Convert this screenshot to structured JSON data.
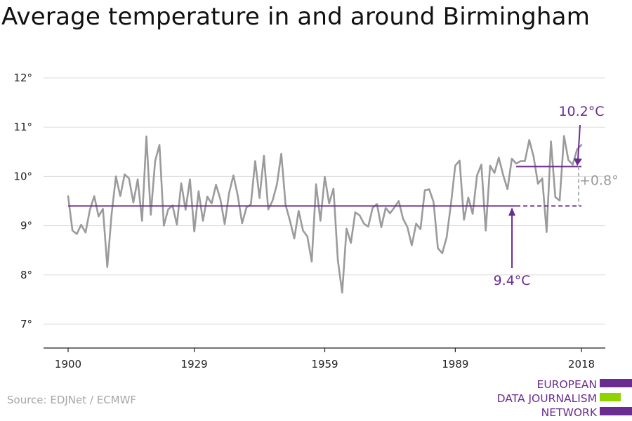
{
  "title": "Average temperature in and around Birmingham",
  "source": "Source: EDJNet / ECMWF",
  "logo": {
    "lines": [
      "EUROPEAN",
      "DATA JOURNALISM",
      "NETWORK"
    ]
  },
  "colors": {
    "series": "#9b9b9b",
    "accent": "#6a2c91",
    "grid": "#dcdcdc",
    "logo_green": "#8fd400"
  },
  "chart_data": {
    "type": "line",
    "title": "Average temperature in and around Birmingham",
    "xlabel": "",
    "ylabel": "",
    "xlim": [
      1900,
      2018
    ],
    "ylim": [
      6.5,
      12.2
    ],
    "x_ticks": [
      1900,
      1929,
      1959,
      1989,
      2018
    ],
    "x_tick_labels": [
      "1900",
      "1929",
      "1959",
      "1989",
      "2018"
    ],
    "y_ticks": [
      7,
      8,
      9,
      10,
      11,
      12
    ],
    "y_tick_labels": [
      "7°",
      "8°",
      "9°",
      "10°",
      "11°",
      "12°"
    ],
    "grid": true,
    "series": [
      {
        "x_start": 1900,
        "values": [
          9.6,
          8.9,
          8.83,
          9.02,
          8.86,
          9.32,
          9.6,
          9.19,
          9.34,
          8.16,
          9.23,
          10.0,
          9.6,
          10.04,
          9.96,
          9.47,
          9.94,
          9.1,
          10.81,
          9.22,
          10.31,
          10.64,
          9.0,
          9.33,
          9.41,
          9.02,
          9.86,
          9.32,
          9.94,
          8.88,
          9.7,
          9.1,
          9.59,
          9.45,
          9.83,
          9.54,
          9.03,
          9.66,
          10.02,
          9.61,
          9.05,
          9.37,
          9.43,
          10.31,
          9.56,
          10.42,
          9.33,
          9.51,
          9.84,
          10.46,
          9.42,
          9.1,
          8.74,
          9.3,
          8.9,
          8.78,
          8.27,
          9.84,
          9.1,
          9.99,
          9.45,
          9.75,
          8.3,
          7.64,
          8.94,
          8.65,
          9.27,
          9.21,
          9.04,
          8.98,
          9.36,
          9.44,
          8.97,
          9.36,
          9.25,
          9.37,
          9.5,
          9.14,
          8.97,
          8.6,
          9.04,
          8.93,
          9.72,
          9.74,
          9.48,
          8.54,
          8.44,
          8.76,
          9.44,
          10.22,
          10.32,
          9.12,
          9.57,
          9.24,
          10.02,
          10.24,
          8.9,
          10.22,
          10.07,
          10.38,
          10.03,
          9.74,
          10.36,
          10.26,
          10.31,
          10.31,
          10.74,
          10.4,
          9.85,
          9.96,
          8.87,
          10.71,
          9.58,
          9.51,
          10.82,
          10.33,
          10.24,
          10.55,
          10.64
        ]
      }
    ],
    "reference_lines": [
      {
        "label": "9.4°C",
        "value": 9.4,
        "x_from": 1900,
        "x_to": 2003,
        "dashed_to": 2018
      },
      {
        "label": "10.2°C",
        "value": 10.2,
        "x_from": 2003,
        "x_to": 2018
      }
    ],
    "difference_label": "+0.8°"
  }
}
